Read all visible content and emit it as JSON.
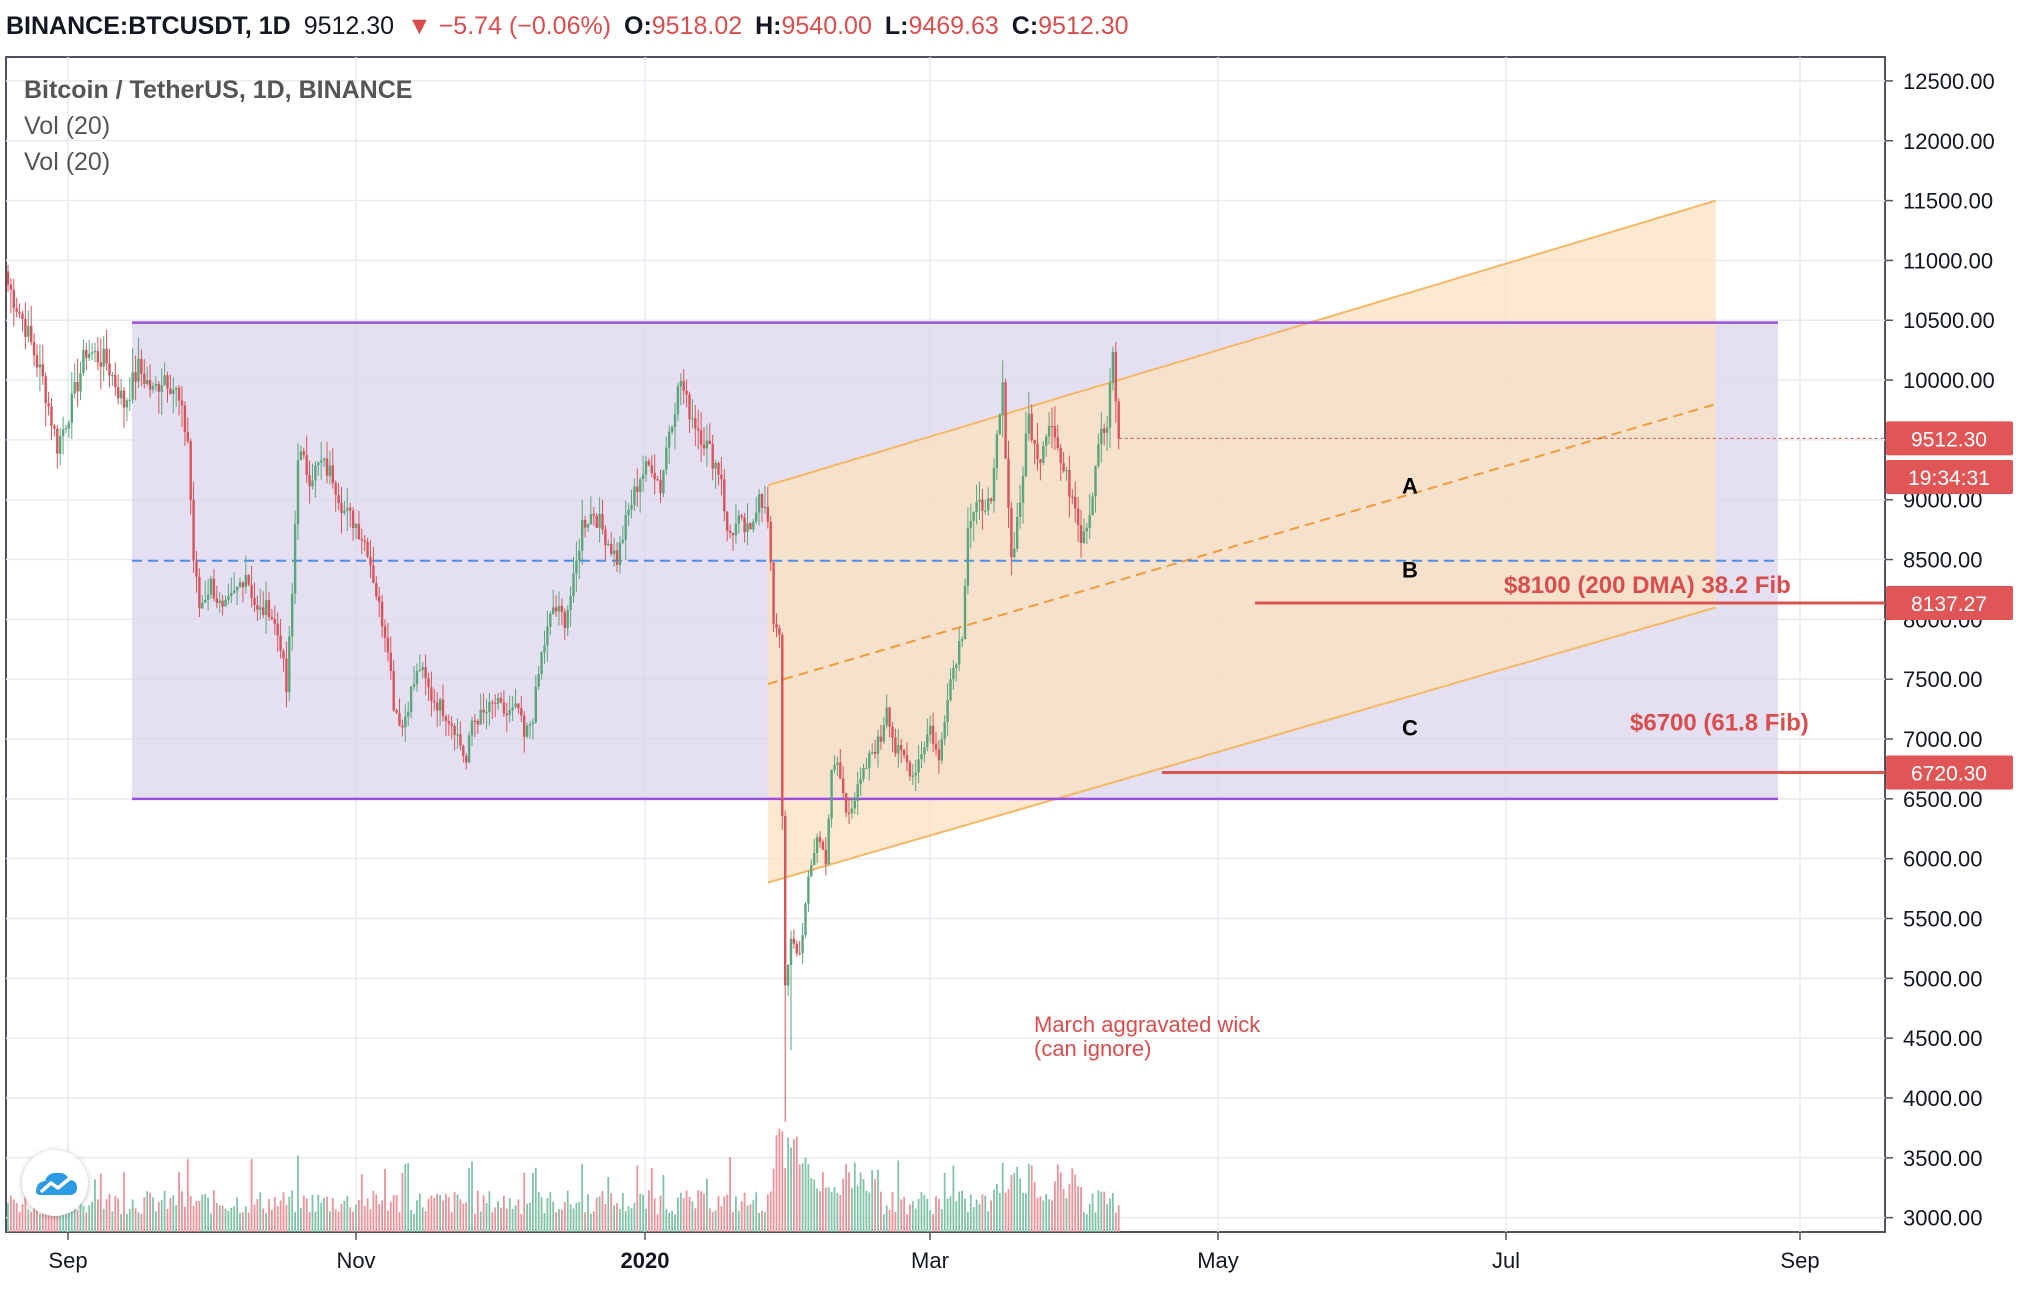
{
  "header": {
    "symbol": "BINANCE:BTCUSDT, 1D",
    "last": "9512.30",
    "change": "▼ −5.74 (−0.06%)",
    "o_label": "O:",
    "o": "9518.02",
    "h_label": "H:",
    "h": "9540.00",
    "l_label": "L:",
    "l": "9469.63",
    "c_label": "C:",
    "c": "9512.30"
  },
  "legend": {
    "title": "Bitcoin / TetherUS, 1D, BINANCE",
    "vol1": "Vol (20)",
    "vol2": "Vol (20)"
  },
  "colors": {
    "up": "#5aa67c",
    "down": "#d9535a",
    "range_box": "#dcd6ec",
    "range_line": "#9b4fe0",
    "channel": "#fbe2bf",
    "channel_line": "#f5b867",
    "dashed_mid": "#4e90e8",
    "label_red": "#d84d4d"
  },
  "chart_data": {
    "type": "candlestick",
    "symbol": "BINANCE:BTCUSDT",
    "interval": "1D",
    "ylim": [
      2880,
      12700
    ],
    "y_ticks": [
      "12500.00",
      "12000.00",
      "11500.00",
      "11000.00",
      "10500.00",
      "10000.00",
      "9500.00",
      "9000.00",
      "8500.00",
      "8000.00",
      "7500.00",
      "7000.00",
      "6500.00",
      "6000.00",
      "5500.00",
      "5000.00",
      "4500.00",
      "4000.00",
      "3500.00",
      "3000.00"
    ],
    "x_ticks": [
      "Sep",
      "Nov",
      "2020",
      "Mar",
      "May",
      "Jul",
      "Sep"
    ],
    "price_path": [
      [
        0,
        10800
      ],
      [
        6,
        10450
      ],
      [
        12,
        10000
      ],
      [
        17,
        9450
      ],
      [
        22,
        9800
      ],
      [
        27,
        10250
      ],
      [
        34,
        10150
      ],
      [
        40,
        9800
      ],
      [
        45,
        10100
      ],
      [
        50,
        9900
      ],
      [
        54,
        10050
      ],
      [
        58,
        9900
      ],
      [
        62,
        9500
      ],
      [
        64,
        8500
      ],
      [
        66,
        8100
      ],
      [
        70,
        8300
      ],
      [
        74,
        8050
      ],
      [
        78,
        8200
      ],
      [
        82,
        8400
      ],
      [
        86,
        8050
      ],
      [
        90,
        8100
      ],
      [
        94,
        7800
      ],
      [
        96,
        7400
      ],
      [
        98,
        8200
      ],
      [
        100,
        9400
      ],
      [
        104,
        9200
      ],
      [
        108,
        9300
      ],
      [
        112,
        9200
      ],
      [
        116,
        8900
      ],
      [
        120,
        8800
      ],
      [
        124,
        8600
      ],
      [
        128,
        8100
      ],
      [
        131,
        7800
      ],
      [
        133,
        7300
      ],
      [
        136,
        7100
      ],
      [
        139,
        7400
      ],
      [
        142,
        7600
      ],
      [
        146,
        7350
      ],
      [
        150,
        7250
      ],
      [
        154,
        7100
      ],
      [
        158,
        6800
      ],
      [
        160,
        7150
      ],
      [
        164,
        7200
      ],
      [
        168,
        7300
      ],
      [
        172,
        7200
      ],
      [
        176,
        7250
      ],
      [
        178,
        7000
      ],
      [
        181,
        7200
      ],
      [
        184,
        7700
      ],
      [
        188,
        8100
      ],
      [
        192,
        8000
      ],
      [
        195,
        8300
      ],
      [
        198,
        8800
      ],
      [
        202,
        8900
      ],
      [
        206,
        8700
      ],
      [
        210,
        8500
      ],
      [
        214,
        8900
      ],
      [
        218,
        9200
      ],
      [
        222,
        9300
      ],
      [
        225,
        9100
      ],
      [
        228,
        9600
      ],
      [
        232,
        10000
      ],
      [
        234,
        9800
      ],
      [
        238,
        9600
      ],
      [
        242,
        9400
      ],
      [
        246,
        9200
      ],
      [
        248,
        8700
      ],
      [
        252,
        8800
      ],
      [
        256,
        8700
      ],
      [
        259,
        9100
      ],
      [
        262,
        8800
      ],
      [
        264,
        8000
      ],
      [
        266,
        7900
      ],
      [
        268,
        4900
      ],
      [
        270,
        5300
      ],
      [
        273,
        5200
      ],
      [
        276,
        5800
      ],
      [
        279,
        6200
      ],
      [
        282,
        6000
      ],
      [
        284,
        6700
      ],
      [
        286,
        6800
      ],
      [
        289,
        6400
      ],
      [
        292,
        6500
      ],
      [
        295,
        6700
      ],
      [
        298,
        6900
      ],
      [
        301,
        7000
      ],
      [
        303,
        7300
      ],
      [
        306,
        6900
      ],
      [
        309,
        6850
      ],
      [
        312,
        6700
      ],
      [
        315,
        6900
      ],
      [
        318,
        7100
      ],
      [
        321,
        6800
      ],
      [
        324,
        7400
      ],
      [
        327,
        7700
      ],
      [
        329,
        7900
      ],
      [
        331,
        8800
      ],
      [
        334,
        8900
      ],
      [
        337,
        9000
      ],
      [
        339,
        8900
      ],
      [
        341,
        9500
      ],
      [
        343,
        9900
      ],
      [
        346,
        8500
      ],
      [
        349,
        9000
      ],
      [
        352,
        9700
      ],
      [
        355,
        9300
      ],
      [
        358,
        9600
      ],
      [
        360,
        9700
      ],
      [
        363,
        9300
      ],
      [
        366,
        9100
      ],
      [
        368,
        9000
      ],
      [
        370,
        8700
      ],
      [
        373,
        8900
      ],
      [
        376,
        9500
      ],
      [
        379,
        9600
      ],
      [
        381,
        10200
      ],
      [
        383,
        9500
      ]
    ],
    "volume_profile": "daily volume histogram along bottom, spike in mid-March",
    "annotations": [
      {
        "text": "$8100 (200 DMA) 38.2 Fib",
        "price": 8137.27
      },
      {
        "text": "$6700 (61.8 Fib)",
        "price": 6720.3
      },
      {
        "text": "A",
        "price": 9050
      },
      {
        "text": "B",
        "price": 8350
      },
      {
        "text": "C",
        "price": 7030
      },
      {
        "text": "March aggravated wick",
        "price": 4550
      },
      {
        "text": "(can ignore)",
        "price": 4350
      }
    ],
    "price_labels": [
      {
        "text": "9512.30",
        "price": 9512.3
      },
      {
        "text": "19:34:31",
        "price": 9190
      },
      {
        "text": "8137.27",
        "price": 8137.27
      },
      {
        "text": "6720.30",
        "price": 6720.3
      }
    ],
    "range": {
      "top": 10480,
      "bottom": 6500,
      "mid": 8490
    },
    "channel": {
      "start_bar": 262,
      "end_bar": 477,
      "upper_start": 9120,
      "upper_end": 11500,
      "lower_start": 5800,
      "lower_end": 8100,
      "mid_start": 7460,
      "mid_end": 9800
    }
  }
}
